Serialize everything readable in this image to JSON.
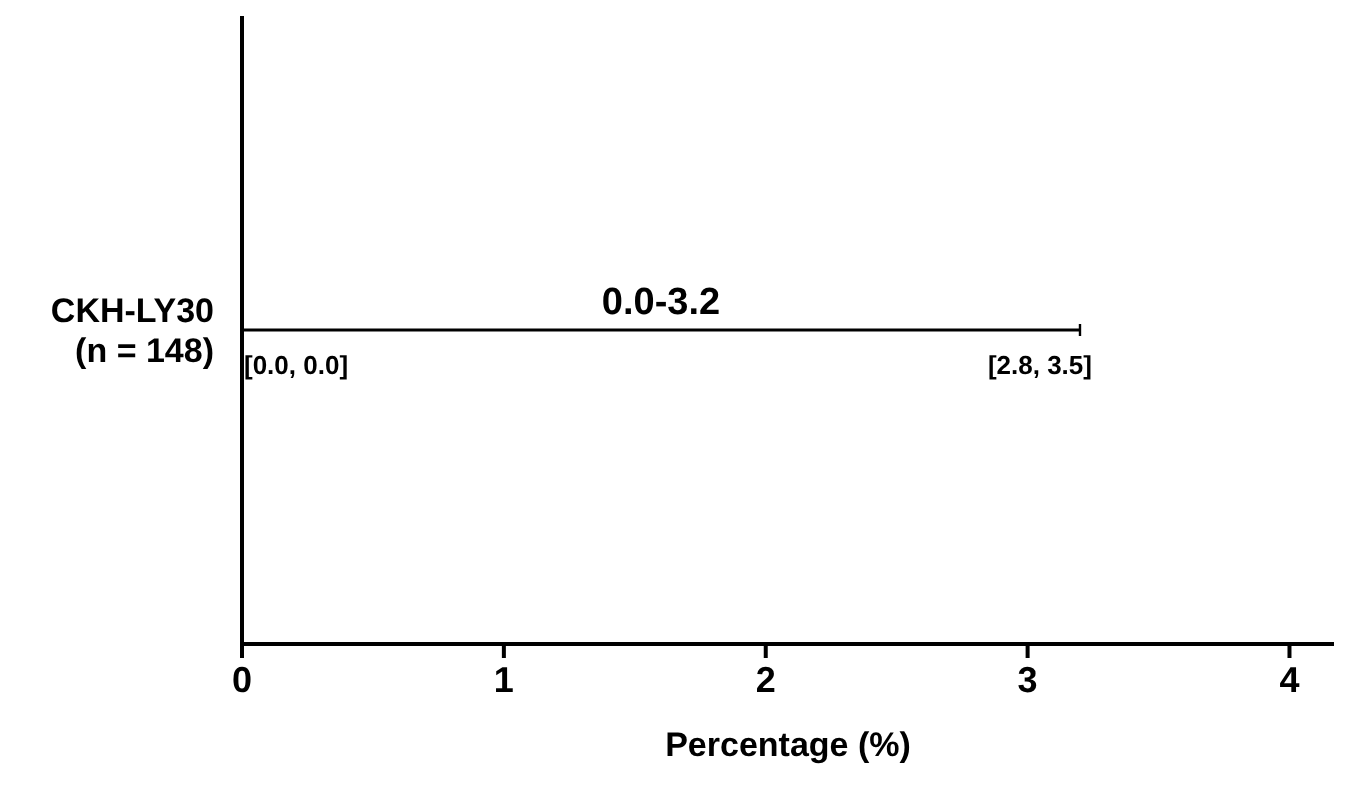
{
  "chart_data": {
    "type": "bar",
    "orientation": "horizontal",
    "xlabel": "Percentage (%)",
    "categories": [
      "CKH-LY30\n(n = 148)"
    ],
    "base": [
      0.0
    ],
    "values": [
      3.2
    ],
    "color": "#000000",
    "value_labels": [
      "0.0-3.2"
    ],
    "annotations": [
      "[0.0, 0.0]",
      "[2.8, 3.5]"
    ],
    "xlim": [
      0,
      4.17
    ],
    "xticks": [
      0,
      1,
      2,
      3,
      4
    ],
    "grid": false,
    "legend": false
  }
}
